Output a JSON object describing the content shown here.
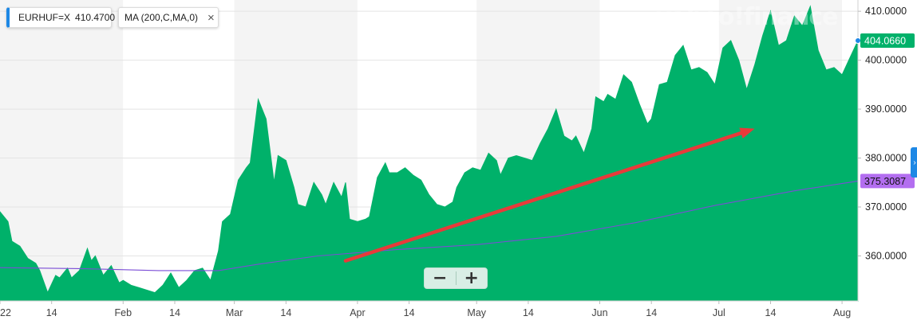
{
  "legend": {
    "symbol": "EURHUF=X",
    "symbol_value": "410.4700",
    "ma_label": "MA (200,C,MA,0)",
    "close_glyph": "×"
  },
  "watermark": "yahoo!finance",
  "zoom": {
    "minus": "−",
    "plus": "+"
  },
  "side_tab_glyph": "›",
  "chart_data": {
    "type": "area",
    "title": "",
    "xlabel": "",
    "ylabel": "",
    "ylim": [
      350.8,
      412.3
    ],
    "grid": true,
    "x_ticks": [
      {
        "label": "22",
        "day": 0
      },
      {
        "label": "14",
        "day": 13
      },
      {
        "label": "Feb",
        "day": 31
      },
      {
        "label": "14",
        "day": 44
      },
      {
        "label": "Mar",
        "day": 59
      },
      {
        "label": "14",
        "day": 72
      },
      {
        "label": "Apr",
        "day": 90
      },
      {
        "label": "14",
        "day": 103
      },
      {
        "label": "May",
        "day": 120
      },
      {
        "label": "14",
        "day": 133
      },
      {
        "label": "Jun",
        "day": 151
      },
      {
        "label": "14",
        "day": 164
      },
      {
        "label": "Jul",
        "day": 181
      },
      {
        "label": "14",
        "day": 194
      },
      {
        "label": "Aug",
        "day": 212
      }
    ],
    "y_ticks": [
      "410.0000",
      "400.0000",
      "390.0000",
      "380.0000",
      "370.0000",
      "360.0000"
    ],
    "y_tick_values": [
      410,
      400,
      390,
      380,
      370,
      360
    ],
    "series": [
      {
        "name": "EURHUF=X",
        "color": "#00b16a",
        "values": [
          [
            0,
            369.0
          ],
          [
            2,
            367.0
          ],
          [
            3,
            363.0
          ],
          [
            5,
            362.0
          ],
          [
            7,
            359.5
          ],
          [
            9,
            358.5
          ],
          [
            10,
            357.0
          ],
          [
            12,
            352.5
          ],
          [
            14,
            356.0
          ],
          [
            15,
            355.5
          ],
          [
            17,
            357.5
          ],
          [
            18,
            355.5
          ],
          [
            20,
            357.0
          ],
          [
            22,
            361.5
          ],
          [
            23,
            359.0
          ],
          [
            24,
            360.0
          ],
          [
            26,
            356.0
          ],
          [
            28,
            358.0
          ],
          [
            30,
            354.5
          ],
          [
            31,
            355.0
          ],
          [
            33,
            354.0
          ],
          [
            35,
            353.5
          ],
          [
            37,
            353.0
          ],
          [
            39,
            352.5
          ],
          [
            41,
            354.0
          ],
          [
            43,
            356.5
          ],
          [
            45,
            353.5
          ],
          [
            47,
            355.0
          ],
          [
            49,
            357.0
          ],
          [
            51,
            357.5
          ],
          [
            53,
            355.0
          ],
          [
            55,
            361.0
          ],
          [
            56,
            367.0
          ],
          [
            58,
            368.5
          ],
          [
            60,
            375.5
          ],
          [
            62,
            378.0
          ],
          [
            63,
            379.0
          ],
          [
            65,
            392.0
          ],
          [
            67,
            388.0
          ],
          [
            69,
            375.0
          ],
          [
            70,
            380.5
          ],
          [
            72,
            379.5
          ],
          [
            74,
            374.0
          ],
          [
            75,
            370.5
          ],
          [
            77,
            370.0
          ],
          [
            79,
            375.0
          ],
          [
            81,
            372.5
          ],
          [
            82,
            370.5
          ],
          [
            84,
            375.0
          ],
          [
            86,
            372.0
          ],
          [
            87,
            375.0
          ],
          [
            88,
            367.5
          ],
          [
            90,
            367.0
          ],
          [
            92,
            367.5
          ],
          [
            93,
            368.0
          ],
          [
            95,
            376.0
          ],
          [
            97,
            379.0
          ],
          [
            98,
            377.0
          ],
          [
            100,
            377.0
          ],
          [
            102,
            378.0
          ],
          [
            104,
            376.5
          ],
          [
            106,
            375.5
          ],
          [
            108,
            372.5
          ],
          [
            110,
            370.5
          ],
          [
            112,
            370.0
          ],
          [
            114,
            371.0
          ],
          [
            115,
            374.0
          ],
          [
            117,
            377.0
          ],
          [
            119,
            378.0
          ],
          [
            121,
            377.5
          ],
          [
            123,
            381.0
          ],
          [
            125,
            379.5
          ],
          [
            126,
            376.5
          ],
          [
            128,
            380.0
          ],
          [
            130,
            380.5
          ],
          [
            132,
            380.0
          ],
          [
            134,
            379.5
          ],
          [
            136,
            383.0
          ],
          [
            138,
            386.0
          ],
          [
            140,
            390.0
          ],
          [
            142,
            384.5
          ],
          [
            144,
            383.5
          ],
          [
            145,
            384.5
          ],
          [
            147,
            381.0
          ],
          [
            149,
            386.0
          ],
          [
            150,
            392.5
          ],
          [
            152,
            391.5
          ],
          [
            153,
            393.0
          ],
          [
            155,
            392.0
          ],
          [
            157,
            397.0
          ],
          [
            159,
            395.5
          ],
          [
            161,
            391.0
          ],
          [
            163,
            387.0
          ],
          [
            164,
            388.0
          ],
          [
            166,
            395.0
          ],
          [
            168,
            395.5
          ],
          [
            170,
            401.0
          ],
          [
            172,
            403.0
          ],
          [
            174,
            398.0
          ],
          [
            176,
            398.5
          ],
          [
            178,
            397.5
          ],
          [
            180,
            395.0
          ],
          [
            182,
            402.5
          ],
          [
            184,
            404.0
          ],
          [
            186,
            400.0
          ],
          [
            188,
            394.0
          ],
          [
            190,
            399.0
          ],
          [
            192,
            405.0
          ],
          [
            194,
            410.0
          ],
          [
            196,
            403.0
          ],
          [
            198,
            404.0
          ],
          [
            200,
            409.0
          ],
          [
            202,
            407.0
          ],
          [
            204,
            411.0
          ],
          [
            206,
            402.0
          ],
          [
            208,
            398.0
          ],
          [
            210,
            398.5
          ],
          [
            212,
            397.0
          ],
          [
            214,
            400.5
          ],
          [
            216,
            404.0
          ]
        ],
        "last_label": "404.0660"
      },
      {
        "name": "MA (200,C,MA,0)",
        "color": "#7b4dd6",
        "values": [
          [
            0,
            357.6
          ],
          [
            20,
            357.4
          ],
          [
            40,
            357.0
          ],
          [
            55,
            357.0
          ],
          [
            65,
            358.3
          ],
          [
            80,
            360.0
          ],
          [
            100,
            361.3
          ],
          [
            120,
            362.3
          ],
          [
            140,
            364.0
          ],
          [
            160,
            366.8
          ],
          [
            180,
            370.3
          ],
          [
            200,
            373.3
          ],
          [
            216,
            375.3
          ]
        ],
        "last_label": "375.3087"
      }
    ],
    "annotations": [
      {
        "type": "arrow",
        "color": "#e83a3a",
        "from": [
          87,
          359.0
        ],
        "to": [
          190,
          386.0
        ]
      }
    ]
  }
}
